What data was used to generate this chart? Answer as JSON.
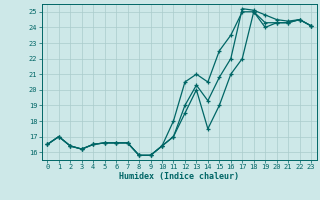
{
  "xlabel": "Humidex (Indice chaleur)",
  "bg_color": "#cde8e8",
  "grid_color": "#aacccc",
  "line_color": "#006666",
  "xlim": [
    -0.5,
    23.5
  ],
  "ylim": [
    15.5,
    25.5
  ],
  "xticks": [
    0,
    1,
    2,
    3,
    4,
    5,
    6,
    7,
    8,
    9,
    10,
    11,
    12,
    13,
    14,
    15,
    16,
    17,
    18,
    19,
    20,
    21,
    22,
    23
  ],
  "yticks": [
    16,
    17,
    18,
    19,
    20,
    21,
    22,
    23,
    24,
    25
  ],
  "line1_x": [
    0,
    1,
    2,
    3,
    4,
    5,
    6,
    7,
    8,
    9,
    10,
    11,
    12,
    13,
    14,
    15,
    16,
    17,
    18,
    19,
    20,
    21,
    22,
    23
  ],
  "line1_y": [
    16.5,
    17.0,
    16.4,
    16.2,
    16.5,
    16.6,
    16.6,
    16.6,
    15.8,
    15.8,
    16.4,
    18.0,
    20.5,
    21.0,
    20.5,
    22.5,
    23.5,
    25.0,
    25.0,
    24.3,
    24.3,
    24.3,
    24.5,
    24.1
  ],
  "line2_x": [
    0,
    1,
    2,
    3,
    4,
    5,
    6,
    7,
    8,
    9,
    10,
    11,
    12,
    13,
    14,
    15,
    16,
    17,
    18,
    19,
    20,
    21,
    22,
    23
  ],
  "line2_y": [
    16.5,
    17.0,
    16.4,
    16.2,
    16.5,
    16.6,
    16.6,
    16.6,
    15.8,
    15.8,
    16.4,
    17.0,
    19.0,
    20.3,
    19.3,
    20.8,
    22.0,
    25.2,
    25.1,
    24.8,
    24.5,
    24.4,
    24.5,
    24.1
  ],
  "line3_x": [
    0,
    1,
    2,
    3,
    4,
    5,
    6,
    7,
    8,
    9,
    10,
    11,
    12,
    13,
    14,
    15,
    16,
    17,
    18,
    19,
    20,
    21,
    22,
    23
  ],
  "line3_y": [
    16.5,
    17.0,
    16.4,
    16.2,
    16.5,
    16.6,
    16.6,
    16.6,
    15.8,
    15.8,
    16.4,
    17.0,
    18.5,
    20.0,
    17.5,
    19.0,
    21.0,
    22.0,
    25.0,
    24.0,
    24.3,
    24.3,
    24.5,
    24.1
  ]
}
